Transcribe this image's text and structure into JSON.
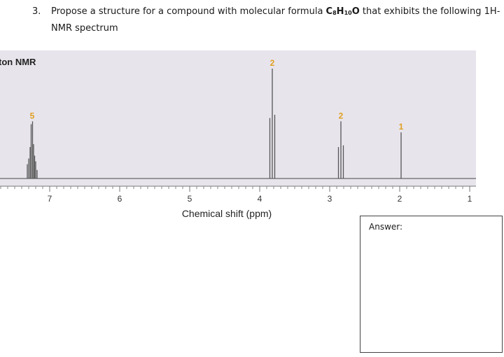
{
  "question": {
    "number": "3.",
    "text_before": "Propose a structure for a compound with molecular formula ",
    "formula": {
      "C": "C",
      "c_sub": "8",
      "H": "H",
      "h_sub": "10",
      "O": "O"
    },
    "text_after": " that exhibits the following 1H-NMR spectrum"
  },
  "answer": {
    "label": "Answer:"
  },
  "chart_data": {
    "type": "line",
    "title": "ton NMR",
    "xlabel": "Chemical shift (ppm)",
    "ylabel": "",
    "xlim": [
      7.7,
      0.9
    ],
    "x_ticks": [
      7,
      6,
      5,
      4,
      3,
      2,
      1
    ],
    "grid": false,
    "legend": null,
    "panel_color": "#e8e4ec",
    "label_color": "#e0a020",
    "peaks": [
      {
        "shift_ppm": 7.25,
        "integration": "5",
        "multiplicity": "multiplet",
        "relative_height": 0.52
      },
      {
        "shift_ppm": 3.82,
        "integration": "2",
        "multiplicity": "triplet",
        "relative_height": 1.0
      },
      {
        "shift_ppm": 2.84,
        "integration": "2",
        "multiplicity": "triplet",
        "relative_height": 0.52
      },
      {
        "shift_ppm": 1.98,
        "integration": "1",
        "multiplicity": "singlet",
        "relative_height": 0.42
      }
    ]
  }
}
